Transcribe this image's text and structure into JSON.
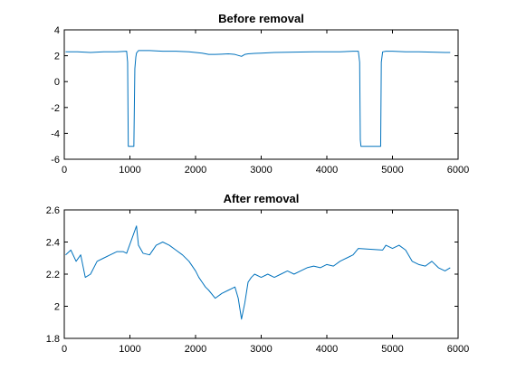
{
  "chart_data": [
    {
      "type": "line",
      "title": "Before removal",
      "xlabel": "",
      "ylabel": "",
      "xlim": [
        0,
        6000
      ],
      "ylim": [
        -6,
        4
      ],
      "xticks": [
        0,
        1000,
        2000,
        3000,
        4000,
        5000,
        6000
      ],
      "yticks": [
        -6,
        -4,
        -2,
        0,
        2,
        4
      ],
      "grid": false,
      "color": "#0072bd",
      "series": [
        {
          "x": [
            20,
            200,
            400,
            600,
            800,
            950,
            965,
            975,
            1000,
            1050,
            1060,
            1075,
            1090,
            1100,
            1130,
            1300,
            1500,
            1700,
            1900,
            2000,
            2100,
            2200,
            2300,
            2400,
            2500,
            2600,
            2700,
            2750,
            2800,
            2900,
            3000,
            3200,
            3500,
            3800,
            4000,
            4200,
            4400,
            4480,
            4500,
            4510,
            4520,
            4600,
            4700,
            4800,
            4820,
            4830,
            4850,
            4900,
            5000,
            5200,
            5400,
            5600,
            5800,
            5880
          ],
          "y": [
            2.3,
            2.3,
            2.25,
            2.3,
            2.3,
            2.35,
            1.5,
            -5.0,
            -5.0,
            -5.0,
            -5.0,
            1.0,
            1.9,
            2.2,
            2.4,
            2.4,
            2.35,
            2.35,
            2.3,
            2.25,
            2.2,
            2.1,
            2.1,
            2.12,
            2.15,
            2.1,
            1.95,
            2.1,
            2.15,
            2.18,
            2.2,
            2.25,
            2.28,
            2.3,
            2.3,
            2.3,
            2.35,
            2.35,
            1.5,
            -4.5,
            -5.0,
            -5.0,
            -5.0,
            -5.0,
            -5.0,
            1.5,
            2.3,
            2.35,
            2.35,
            2.3,
            2.3,
            2.28,
            2.25,
            2.25
          ]
        }
      ]
    },
    {
      "type": "line",
      "title": "After removal",
      "xlabel": "",
      "ylabel": "",
      "xlim": [
        0,
        6000
      ],
      "ylim": [
        1.8,
        2.6
      ],
      "xticks": [
        0,
        1000,
        2000,
        3000,
        4000,
        5000,
        6000
      ],
      "yticks": [
        1.8,
        2,
        2.2,
        2.4,
        2.6
      ],
      "grid": false,
      "color": "#0072bd",
      "series": [
        {
          "x": [
            20,
            100,
            180,
            250,
            320,
            400,
            500,
            600,
            700,
            800,
            900,
            950,
            1100,
            1130,
            1200,
            1300,
            1400,
            1500,
            1600,
            1700,
            1800,
            1900,
            2000,
            2050,
            2100,
            2150,
            2200,
            2300,
            2400,
            2500,
            2600,
            2650,
            2700,
            2750,
            2800,
            2850,
            2900,
            3000,
            3100,
            3200,
            3300,
            3400,
            3500,
            3600,
            3700,
            3800,
            3900,
            4000,
            4100,
            4200,
            4300,
            4400,
            4480,
            4850,
            4900,
            5000,
            5100,
            5200,
            5300,
            5400,
            5500,
            5600,
            5700,
            5800,
            5880
          ],
          "y": [
            2.32,
            2.35,
            2.28,
            2.32,
            2.18,
            2.2,
            2.28,
            2.3,
            2.32,
            2.34,
            2.34,
            2.33,
            2.5,
            2.38,
            2.33,
            2.32,
            2.38,
            2.4,
            2.38,
            2.35,
            2.32,
            2.28,
            2.22,
            2.18,
            2.15,
            2.12,
            2.1,
            2.05,
            2.08,
            2.1,
            2.12,
            2.05,
            1.92,
            2.02,
            2.15,
            2.18,
            2.2,
            2.18,
            2.2,
            2.18,
            2.2,
            2.22,
            2.2,
            2.22,
            2.24,
            2.25,
            2.24,
            2.26,
            2.25,
            2.28,
            2.3,
            2.32,
            2.36,
            2.35,
            2.38,
            2.36,
            2.38,
            2.35,
            2.28,
            2.26,
            2.25,
            2.28,
            2.24,
            2.22,
            2.24
          ]
        }
      ]
    }
  ]
}
